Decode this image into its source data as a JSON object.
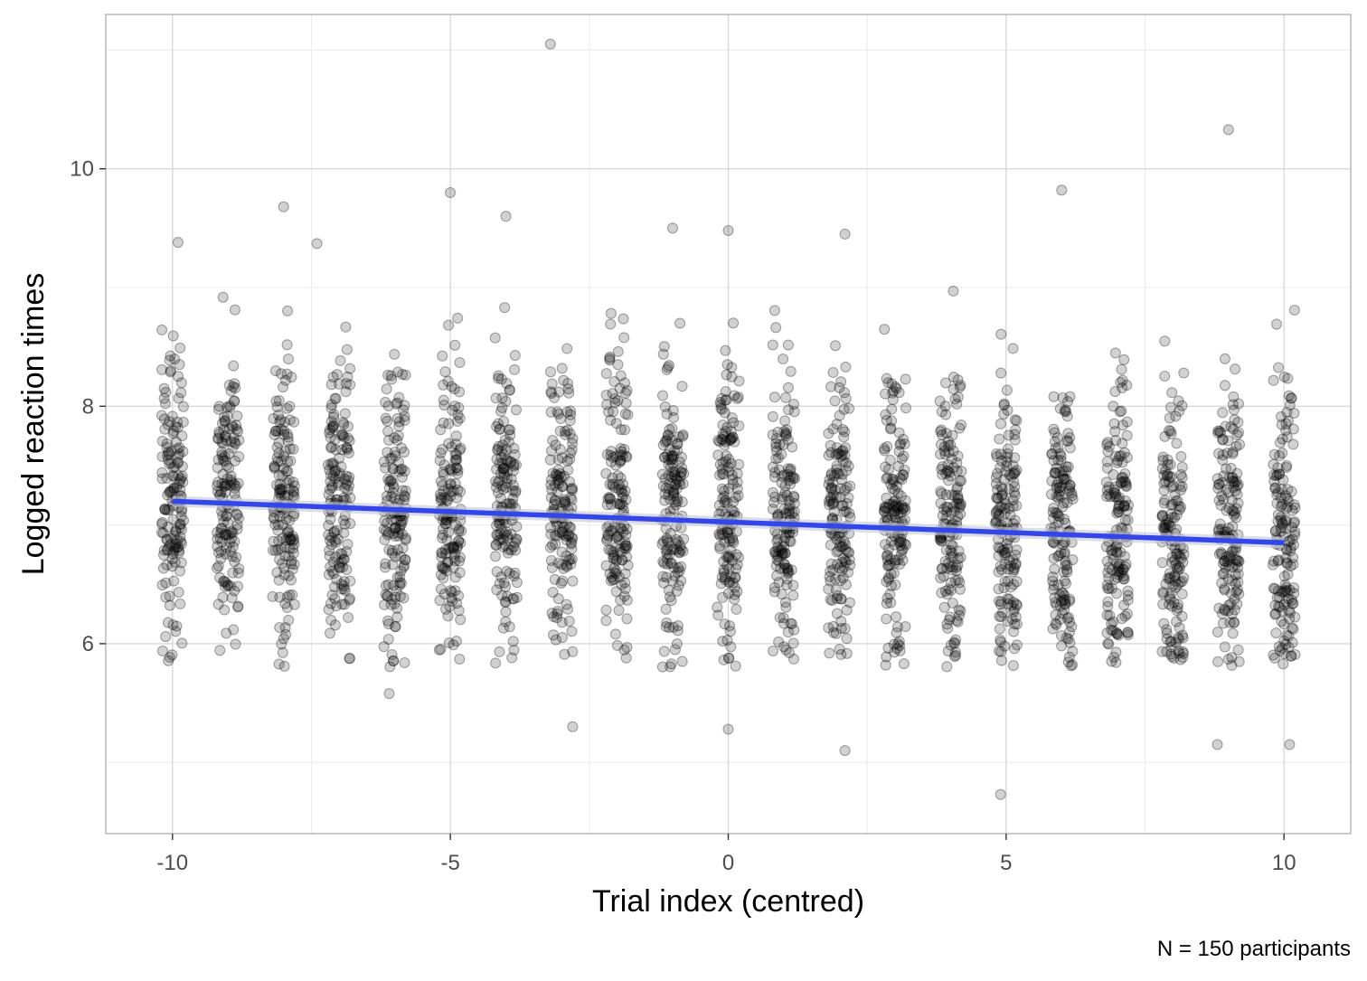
{
  "chart_data": {
    "type": "scatter",
    "title": "",
    "xlabel": "Trial index (centred)",
    "ylabel": "Logged reaction times",
    "caption": "N = 150 participants",
    "xlim": [
      -11.2,
      11.2
    ],
    "ylim": [
      4.4,
      11.3
    ],
    "x_ticks": [
      -10,
      -5,
      0,
      5,
      10
    ],
    "x_tick_labels": [
      "-10",
      "-5",
      "0",
      "5",
      "10"
    ],
    "y_ticks": [
      6,
      8,
      10
    ],
    "y_tick_labels": [
      "6",
      "8",
      "10"
    ],
    "grid": true,
    "jitter": 0.2,
    "x_trials": [
      -10,
      -9,
      -8,
      -7,
      -6,
      -5,
      -4,
      -3,
      -2,
      -1,
      0,
      1,
      2,
      3,
      4,
      5,
      6,
      7,
      8,
      9,
      10
    ],
    "points_per_trial": 150,
    "trend_line": {
      "color": "#3045f5",
      "x": [
        -10,
        10
      ],
      "y": [
        7.2,
        6.85
      ]
    },
    "point_style": {
      "color": "#000000",
      "alpha": 0.2
    },
    "outliers": [
      {
        "x": -9.9,
        "y": 9.38
      },
      {
        "x": -8.0,
        "y": 9.68
      },
      {
        "x": -7.4,
        "y": 9.37
      },
      {
        "x": -5.0,
        "y": 9.8
      },
      {
        "x": -4.0,
        "y": 9.6
      },
      {
        "x": -3.2,
        "y": 11.05
      },
      {
        "x": -1.0,
        "y": 9.5
      },
      {
        "x": 0.0,
        "y": 9.48
      },
      {
        "x": 2.1,
        "y": 9.45
      },
      {
        "x": 6.0,
        "y": 9.82
      },
      {
        "x": 9.0,
        "y": 10.33
      },
      {
        "x": 4.9,
        "y": 4.73
      },
      {
        "x": 2.1,
        "y": 5.1
      },
      {
        "x": -2.8,
        "y": 5.3
      },
      {
        "x": 8.8,
        "y": 5.15
      },
      {
        "x": 10.1,
        "y": 5.15
      },
      {
        "x": -6.1,
        "y": 5.58
      },
      {
        "x": 0.0,
        "y": 5.28
      }
    ]
  }
}
